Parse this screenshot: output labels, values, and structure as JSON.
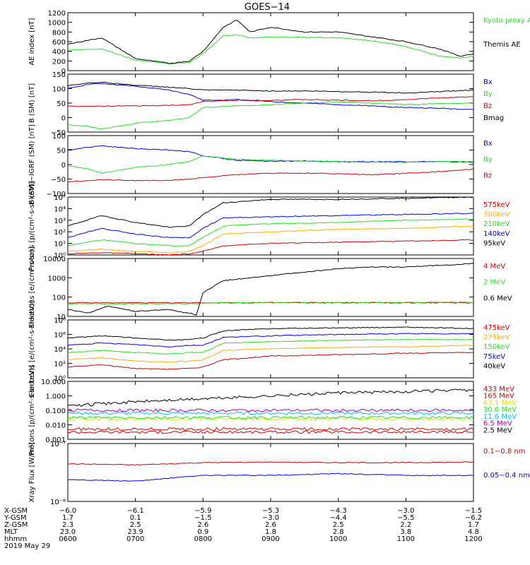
{
  "title": "GOES−14",
  "colors": {
    "black": "#000000",
    "red": "#cc0000",
    "green": "#22dd22",
    "blue": "#0000dd",
    "orange": "#ffaa00",
    "cyan": "#00bbff",
    "yellow": "#dddd00",
    "purple": "#aa00aa"
  },
  "chart_data": [
    {
      "type": "line",
      "ylabel": "AE index [nT]",
      "ylim": [
        0,
        1200
      ],
      "scale": "linear",
      "yticks": [
        "0",
        "200",
        "400",
        "600",
        "800",
        "1000",
        "1200"
      ],
      "x": [
        6,
        6.5,
        7,
        7.5,
        7.8,
        8,
        8.3,
        8.5,
        8.7,
        9,
        9.5,
        10,
        10.5,
        11,
        11.5,
        11.8,
        12
      ],
      "series": [
        {
          "name": "Kyoto proxy AE",
          "color": "green",
          "values": [
            420,
            450,
            220,
            140,
            170,
            350,
            720,
            740,
            680,
            700,
            690,
            680,
            620,
            500,
            300,
            260,
            300
          ]
        },
        {
          "name": "Themis AE",
          "color": "black",
          "values": [
            550,
            680,
            250,
            150,
            200,
            400,
            900,
            1050,
            800,
            900,
            800,
            800,
            700,
            600,
            450,
            300,
            350
          ]
        }
      ]
    },
    {
      "type": "line",
      "ylabel": "B (SM) [nT]",
      "ylim": [
        -50,
        150
      ],
      "scale": "linear",
      "yticks": [
        "−50",
        "0",
        "50",
        "100",
        "150"
      ],
      "x": [
        6,
        6.3,
        6.5,
        7,
        7.5,
        7.8,
        8,
        8.5,
        9,
        9.5,
        10,
        10.5,
        11,
        11.5,
        12
      ],
      "series": [
        {
          "name": "Bx",
          "color": "blue",
          "values": [
            100,
            115,
            118,
            108,
            95,
            80,
            60,
            62,
            55,
            50,
            45,
            40,
            35,
            32,
            28
          ]
        },
        {
          "name": "By",
          "color": "green",
          "values": [
            -25,
            -30,
            -40,
            -20,
            -10,
            0,
            35,
            40,
            45,
            50,
            55,
            50,
            45,
            48,
            50
          ]
        },
        {
          "name": "Bz",
          "color": "red",
          "values": [
            40,
            38,
            40,
            40,
            42,
            45,
            55,
            60,
            60,
            62,
            60,
            58,
            62,
            68,
            72
          ]
        },
        {
          "name": "Bmag",
          "color": "black",
          "values": [
            110,
            120,
            122,
            112,
            105,
            100,
            95,
            95,
            92,
            92,
            90,
            88,
            85,
            90,
            95
          ]
        }
      ]
    },
    {
      "type": "line",
      "ylabel": "B (SM)−IGRF (SM) [nT]",
      "ylim": [
        -100,
        100
      ],
      "scale": "linear",
      "yticks": [
        "−100",
        "−50",
        "0",
        "50",
        "100"
      ],
      "x": [
        6,
        6.3,
        6.5,
        7,
        7.5,
        7.8,
        8,
        8.5,
        9,
        9.5,
        10,
        10.5,
        11,
        11.5,
        12
      ],
      "series": [
        {
          "name": "Bx",
          "color": "blue",
          "values": [
            50,
            60,
            65,
            55,
            50,
            45,
            30,
            15,
            12,
            12,
            10,
            10,
            10,
            10,
            8
          ]
        },
        {
          "name": "By",
          "color": "green",
          "values": [
            -5,
            -15,
            -30,
            -10,
            0,
            10,
            30,
            18,
            15,
            12,
            10,
            8,
            8,
            10,
            10
          ]
        },
        {
          "name": "Bz",
          "color": "red",
          "values": [
            -60,
            -55,
            -52,
            -55,
            -55,
            -50,
            -45,
            -35,
            -30,
            -30,
            -32,
            -35,
            -30,
            -25,
            -15
          ]
        }
      ]
    },
    {
      "type": "line",
      "ylabel": "Protons [p/(cm²-s-sr-keV)]",
      "ylim": [
        0,
        5
      ],
      "scale": "log",
      "yticks": [
        "10⁰",
        "10¹",
        "10²",
        "10³",
        "10⁴",
        "10⁵"
      ],
      "x": [
        6,
        6.5,
        7,
        7.5,
        7.8,
        8,
        8.3,
        9,
        10,
        11,
        12
      ],
      "series": [
        {
          "name": "575keV",
          "color": "red",
          "values": [
            0.1,
            0.2,
            0.1,
            0.0,
            0.1,
            0.3,
            0.8,
            1.0,
            1.1,
            1.2,
            1.3
          ]
        },
        {
          "name": "300keV",
          "color": "orange",
          "values": [
            0.3,
            0.5,
            0.3,
            0.2,
            0.3,
            0.8,
            1.8,
            2.0,
            2.2,
            2.3,
            2.5
          ]
        },
        {
          "name": "210keV",
          "color": "green",
          "values": [
            0.8,
            1.3,
            1.0,
            0.8,
            0.8,
            1.5,
            2.5,
            2.7,
            2.8,
            3.0,
            3.1
          ]
        },
        {
          "name": "140keV",
          "color": "blue",
          "values": [
            1.5,
            2.3,
            1.8,
            1.5,
            1.5,
            2.3,
            3.2,
            3.3,
            3.4,
            3.5,
            3.6
          ]
        },
        {
          "name": "95keV",
          "color": "black",
          "values": [
            2.5,
            3.4,
            2.8,
            2.4,
            2.5,
            3.5,
            4.5,
            4.8,
            4.8,
            4.9,
            5.0
          ]
        }
      ]
    },
    {
      "type": "line",
      "ylabel": "Electrons [e/(cm²-s-sr)]",
      "ylim": [
        0.6,
        4
      ],
      "scale": "log",
      "yticks": [
        "10",
        "100",
        "1000",
        "10000"
      ],
      "x": [
        6,
        6.3,
        6.6,
        7,
        7.5,
        7.9,
        8,
        8.3,
        9,
        9.5,
        10,
        10.5,
        11,
        11.5,
        12
      ],
      "series": [
        {
          "name": "4 MeV",
          "color": "red",
          "values": [
            1.4,
            1.4,
            1.4,
            1.4,
            1.4,
            1.4,
            1.4,
            1.4,
            1.4,
            1.4,
            1.4,
            1.4,
            1.4,
            1.4,
            1.4
          ]
        },
        {
          "name": "2 MeV",
          "color": "green",
          "values": [
            1.35,
            1.35,
            1.35,
            1.35,
            1.35,
            1.35,
            1.38,
            1.4,
            1.42,
            1.42,
            1.42,
            1.42,
            1.42,
            1.43,
            1.43
          ]
        },
        {
          "name": "0.6 MeV",
          "color": "black",
          "values": [
            1.0,
            0.8,
            1.2,
            0.9,
            1.0,
            0.7,
            2.0,
            2.7,
            3.0,
            3.2,
            3.4,
            3.5,
            3.5,
            3.6,
            3.7
          ]
        }
      ]
    },
    {
      "type": "line",
      "ylabel": "Electrons [e/(cm²-s-sr-keV)]",
      "ylim": [
        0,
        8
      ],
      "scale": "log",
      "yticks": [
        "10⁰",
        "10²",
        "10⁴",
        "10⁶",
        "10⁸"
      ],
      "x": [
        6,
        6.5,
        7,
        7.5,
        7.8,
        8,
        8.3,
        9,
        10,
        11,
        12
      ],
      "series": [
        {
          "name": "475keV",
          "color": "red",
          "values": [
            1.5,
            1.8,
            1.3,
            1.2,
            1.3,
            1.5,
            2.5,
            3.0,
            3.2,
            3.4,
            3.5
          ]
        },
        {
          "name": "275keV",
          "color": "orange",
          "values": [
            2.5,
            2.8,
            2.3,
            2.2,
            2.3,
            2.5,
            3.8,
            4.0,
            4.2,
            4.3,
            4.5
          ]
        },
        {
          "name": "150keV",
          "color": "green",
          "values": [
            3.5,
            3.8,
            3.5,
            3.3,
            3.5,
            3.5,
            4.8,
            5.0,
            5.2,
            5.3,
            5.3
          ]
        },
        {
          "name": "75keV",
          "color": "blue",
          "values": [
            4.5,
            4.8,
            4.6,
            4.3,
            4.5,
            4.5,
            5.6,
            5.8,
            6.0,
            6.1,
            6.1
          ]
        },
        {
          "name": "40keV",
          "color": "black",
          "values": [
            5.5,
            5.8,
            5.5,
            5.2,
            5.3,
            5.5,
            6.5,
            6.8,
            6.9,
            7.0,
            6.8
          ]
        }
      ]
    },
    {
      "type": "line",
      "ylabel": "Protons [p/(cm²-s-sr-keV)]",
      "ylim": [
        -3,
        1
      ],
      "scale": "log",
      "yticks": [
        "0.001",
        "0.010",
        "0.100",
        "1.000",
        "10.000"
      ],
      "x": [
        6,
        7,
        8,
        9,
        10,
        11,
        12
      ],
      "series": [
        {
          "name": "433 MeV",
          "color": "red",
          "values": [
            -2.5,
            -2.5,
            -2.5,
            -2.5,
            -2.5,
            -2.5,
            -2.5
          ]
        },
        {
          "name": "165 MeV",
          "color": "red",
          "values": [
            -2.3,
            -2.3,
            -2.3,
            -2.3,
            -2.3,
            -2.3,
            -2.3
          ]
        },
        {
          "name": "63.1 MeV",
          "color": "yellow",
          "values": [
            -1.6,
            -1.6,
            -1.6,
            -1.6,
            -1.6,
            -1.6,
            -1.6
          ]
        },
        {
          "name": "30.6 MeV",
          "color": "green",
          "values": [
            -1.5,
            -1.5,
            -1.5,
            -1.5,
            -1.5,
            -1.5,
            -1.5
          ]
        },
        {
          "name": "11.6 MeV",
          "color": "cyan",
          "values": [
            -1.2,
            -1.2,
            -1.2,
            -1.2,
            -1.2,
            -1.2,
            -1.2
          ]
        },
        {
          "name": "6.5 MeV",
          "color": "purple",
          "values": [
            -1.0,
            -1.0,
            -1.0,
            -1.0,
            -1.0,
            -1.0,
            -1.0
          ]
        },
        {
          "name": "2.5 MeV",
          "color": "black",
          "values": [
            -0.7,
            -0.4,
            -0.2,
            0.0,
            0.2,
            0.3,
            0.4
          ]
        }
      ]
    },
    {
      "type": "line",
      "ylabel": "Xray Flux [W/m²]",
      "ylim": [
        -8,
        -7
      ],
      "scale": "log",
      "yticks": [
        "10⁻⁸",
        "10⁻⁷"
      ],
      "x": [
        6,
        7,
        8,
        9,
        10,
        11,
        12
      ],
      "series": [
        {
          "name": "0.1−0.8 nm",
          "color": "red",
          "values": [
            -7.35,
            -7.37,
            -7.33,
            -7.32,
            -7.33,
            -7.33,
            -7.32
          ]
        },
        {
          "name": "0.05−0.4 nm",
          "color": "blue",
          "values": [
            -7.62,
            -7.65,
            -7.55,
            -7.55,
            -7.52,
            -7.55,
            -7.55
          ]
        }
      ]
    }
  ],
  "x_axis": {
    "rows": [
      {
        "label": "X-GSM",
        "values": [
          "−6.0",
          "−6.1",
          "−5.9",
          "−5.3",
          "−4.3",
          "−3.0",
          "−1.5"
        ]
      },
      {
        "label": "Y-GSM",
        "values": [
          "1.7",
          "0.1",
          "−1.5",
          "−3.0",
          "−4.4",
          "−5.5",
          "−6.2"
        ]
      },
      {
        "label": "Z-GSM",
        "values": [
          "2.3",
          "2.5",
          "2.6",
          "2.6",
          "2.5",
          "2.2",
          "1.7"
        ]
      },
      {
        "label": "MLT",
        "values": [
          "23.0",
          "23.9",
          "0.9",
          "1.8",
          "2.8",
          "3.8",
          "4.8"
        ]
      },
      {
        "label": "hhmm",
        "values": [
          "0600",
          "0700",
          "0800",
          "0900",
          "1000",
          "1100",
          "1200"
        ]
      }
    ],
    "date": "2019 May 29"
  }
}
